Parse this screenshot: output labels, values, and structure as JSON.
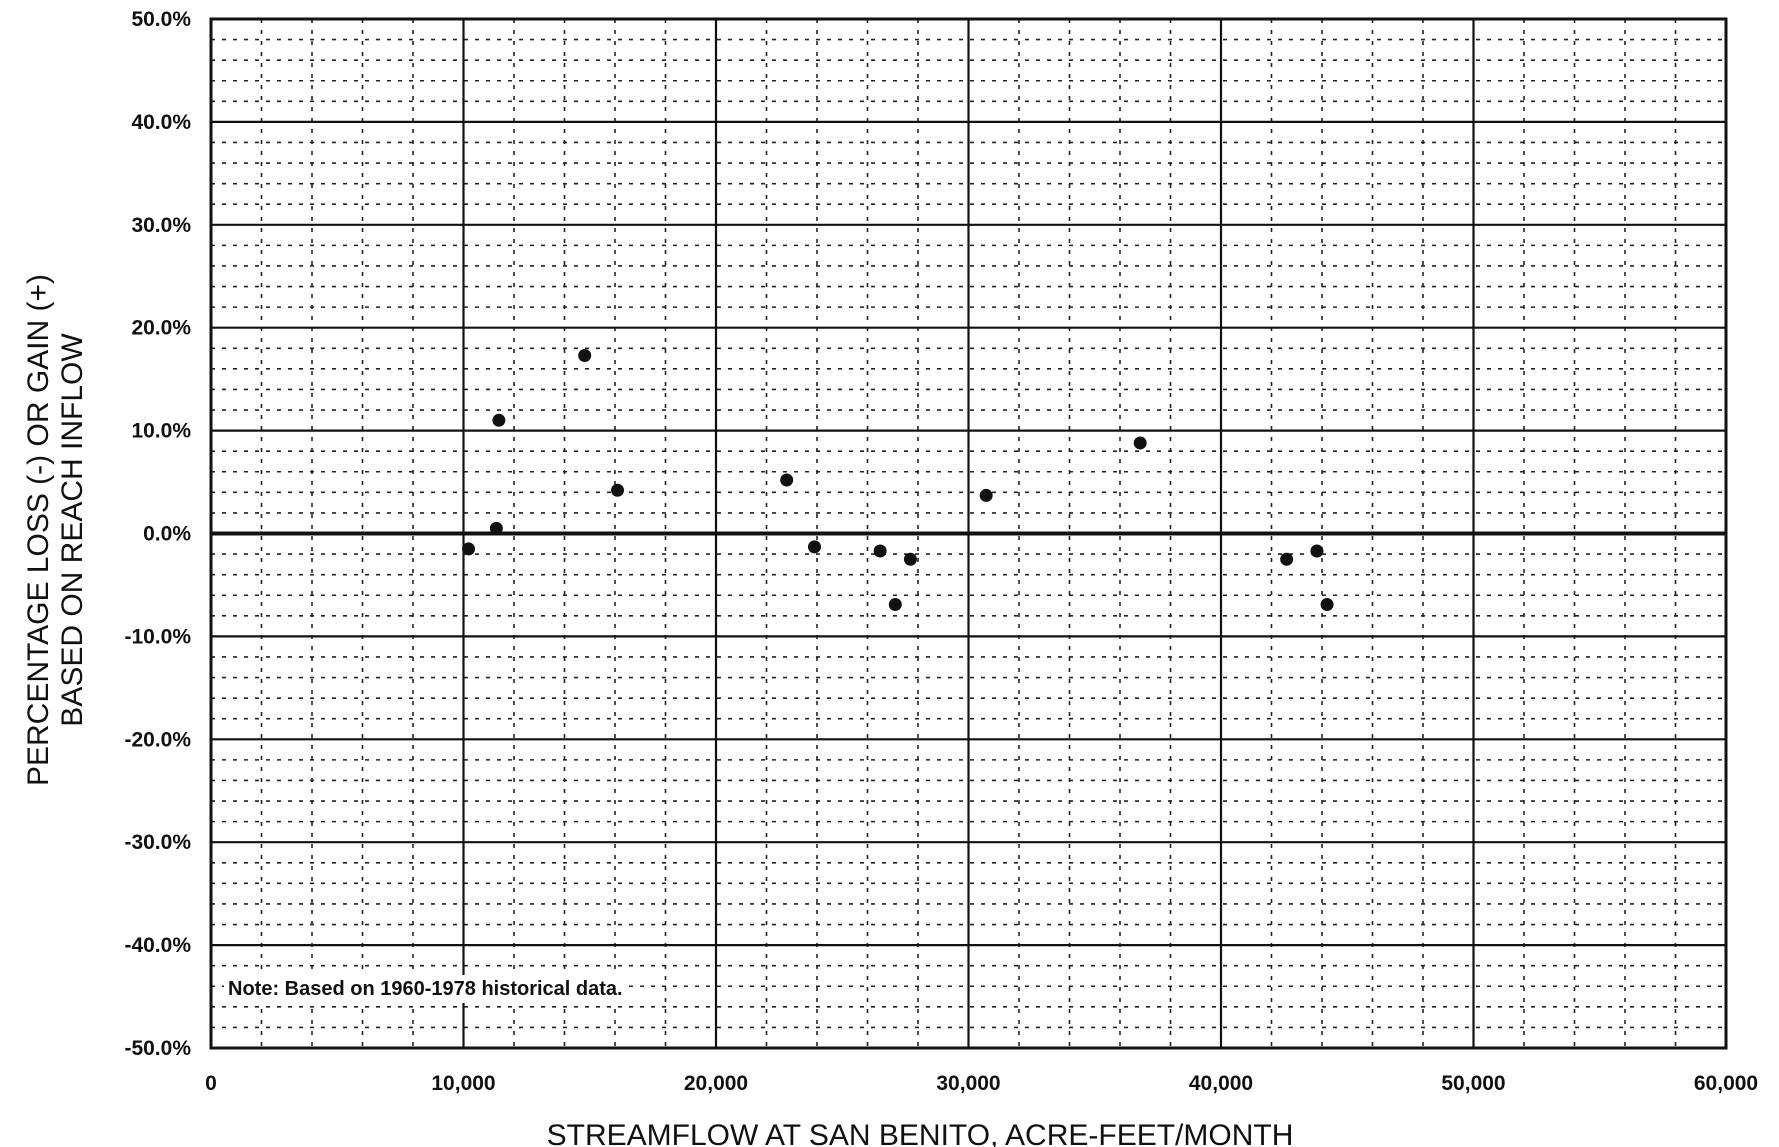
{
  "chart_data": {
    "type": "scatter",
    "title": "",
    "xlabel": "STREAMFLOW AT SAN BENITO, ACRE-FEET/MONTH",
    "ylabel_lines": [
      "PERCENTAGE LOSS (-) OR GAIN (+)",
      "BASED ON REACH INFLOW"
    ],
    "xlim": [
      0,
      60000
    ],
    "ylim": [
      -50,
      50
    ],
    "x_ticks": [
      0,
      10000,
      20000,
      30000,
      40000,
      50000,
      60000
    ],
    "x_tick_labels": [
      "0",
      "10,000",
      "20,000",
      "30,000",
      "40,000",
      "50,000",
      "60,000"
    ],
    "y_ticks": [
      50,
      40,
      30,
      20,
      10,
      0,
      -10,
      -20,
      -30,
      -40,
      -50
    ],
    "y_tick_labels": [
      "50.0%",
      "40.0%",
      "30.0%",
      "20.0%",
      "10.0%",
      "0.0%",
      "-10.0%",
      "-20.0%",
      "-30.0%",
      "-40.0%",
      "-50.0%"
    ],
    "grid": true,
    "minor_x_step": 2000,
    "minor_y_step": 2,
    "note": "Note: Based on 1960-1978 historical data.",
    "point_color": "#111111",
    "points": [
      {
        "x": 10200,
        "y": -1.5
      },
      {
        "x": 11300,
        "y": 0.5
      },
      {
        "x": 11400,
        "y": 11.0
      },
      {
        "x": 14800,
        "y": 17.3
      },
      {
        "x": 16100,
        "y": 4.2
      },
      {
        "x": 22800,
        "y": 5.2
      },
      {
        "x": 23900,
        "y": -1.3
      },
      {
        "x": 26500,
        "y": -1.7
      },
      {
        "x": 27100,
        "y": -6.9
      },
      {
        "x": 27700,
        "y": -2.5
      },
      {
        "x": 30700,
        "y": 3.7
      },
      {
        "x": 36800,
        "y": 8.8
      },
      {
        "x": 42600,
        "y": -2.5
      },
      {
        "x": 43800,
        "y": -1.7
      },
      {
        "x": 44200,
        "y": -6.9
      }
    ]
  }
}
